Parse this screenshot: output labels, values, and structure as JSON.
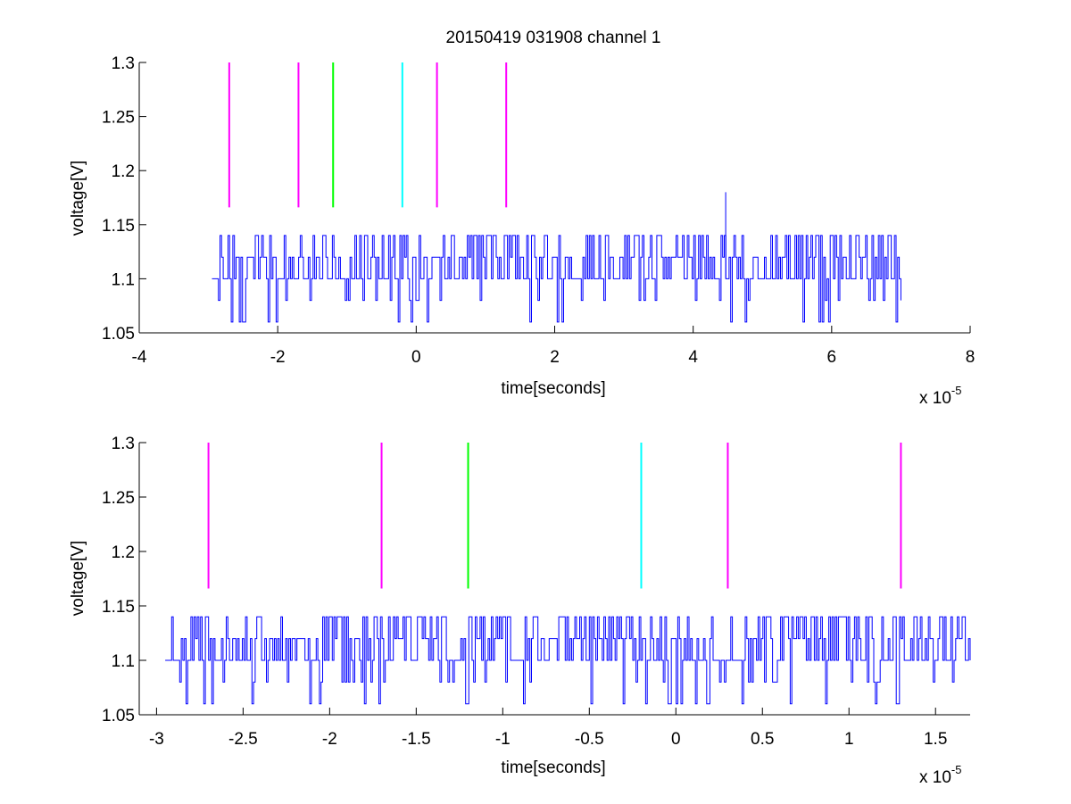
{
  "figure": {
    "title": "20150419 031908 channel 1"
  },
  "chart_data": [
    {
      "type": "line",
      "title": "20150419 031908 channel 1",
      "xlabel": "time[seconds]",
      "ylabel": "voltage[V]",
      "x_scale_label": "x 10",
      "x_scale_exponent": "-5",
      "xlim": [
        -4,
        8
      ],
      "ylim": [
        1.05,
        1.3
      ],
      "xticks": [
        "-4",
        "-2",
        "0",
        "2",
        "4",
        "6",
        "8"
      ],
      "yticks": [
        "1.05",
        "1.1",
        "1.15",
        "1.2",
        "1.25",
        "1.3"
      ],
      "xtick_values": [
        -4,
        -2,
        0,
        2,
        4,
        6,
        8
      ],
      "ytick_values": [
        1.05,
        1.1,
        1.15,
        1.2,
        1.25,
        1.3
      ],
      "grid": false,
      "series": [
        {
          "style": "noisy-trace",
          "color": "#0000ff",
          "x_start": -2.95,
          "x_end": 7.0,
          "levels": [
            1.06,
            1.08,
            1.1,
            1.12,
            1.14
          ],
          "baseline": 1.1,
          "spike": {
            "x": 4.47,
            "y": 1.18
          }
        }
      ],
      "markers": [
        {
          "x": -2.7,
          "y_range": [
            1.166,
            1.3
          ],
          "color": "#ff00ff"
        },
        {
          "x": -1.7,
          "y_range": [
            1.166,
            1.3
          ],
          "color": "#ff00ff"
        },
        {
          "x": -1.2,
          "y_range": [
            1.166,
            1.3
          ],
          "color": "#00ff00"
        },
        {
          "x": -0.2,
          "y_range": [
            1.166,
            1.3
          ],
          "color": "#00ffff"
        },
        {
          "x": 0.3,
          "y_range": [
            1.166,
            1.3
          ],
          "color": "#ff00ff"
        },
        {
          "x": 1.3,
          "y_range": [
            1.166,
            1.3
          ],
          "color": "#ff00ff"
        }
      ]
    },
    {
      "type": "line",
      "title": "",
      "xlabel": "time[seconds]",
      "ylabel": "voltage[V]",
      "x_scale_label": "x 10",
      "x_scale_exponent": "-5",
      "xlim": [
        -3.1,
        1.7
      ],
      "ylim": [
        1.05,
        1.3
      ],
      "xticks": [
        "-3",
        "-2.5",
        "-2",
        "-1.5",
        "-1",
        "-0.5",
        "0",
        "0.5",
        "1",
        "1.5"
      ],
      "yticks": [
        "1.05",
        "1.1",
        "1.15",
        "1.2",
        "1.25",
        "1.3"
      ],
      "xtick_values": [
        -3,
        -2.5,
        -2,
        -1.5,
        -1,
        -0.5,
        0,
        0.5,
        1,
        1.5
      ],
      "ytick_values": [
        1.05,
        1.1,
        1.15,
        1.2,
        1.25,
        1.3
      ],
      "grid": false,
      "series": [
        {
          "style": "noisy-trace",
          "color": "#0000ff",
          "x_start": -2.95,
          "x_end": 1.7,
          "levels": [
            1.06,
            1.08,
            1.1,
            1.12,
            1.14
          ],
          "baseline": 1.1
        }
      ],
      "markers": [
        {
          "x": -2.7,
          "y_range": [
            1.166,
            1.3
          ],
          "color": "#ff00ff"
        },
        {
          "x": -1.7,
          "y_range": [
            1.166,
            1.3
          ],
          "color": "#ff00ff"
        },
        {
          "x": -1.2,
          "y_range": [
            1.166,
            1.3
          ],
          "color": "#00ff00"
        },
        {
          "x": -0.2,
          "y_range": [
            1.166,
            1.3
          ],
          "color": "#00ffff"
        },
        {
          "x": 0.3,
          "y_range": [
            1.166,
            1.3
          ],
          "color": "#ff00ff"
        },
        {
          "x": 1.3,
          "y_range": [
            1.166,
            1.3
          ],
          "color": "#ff00ff"
        }
      ]
    }
  ]
}
